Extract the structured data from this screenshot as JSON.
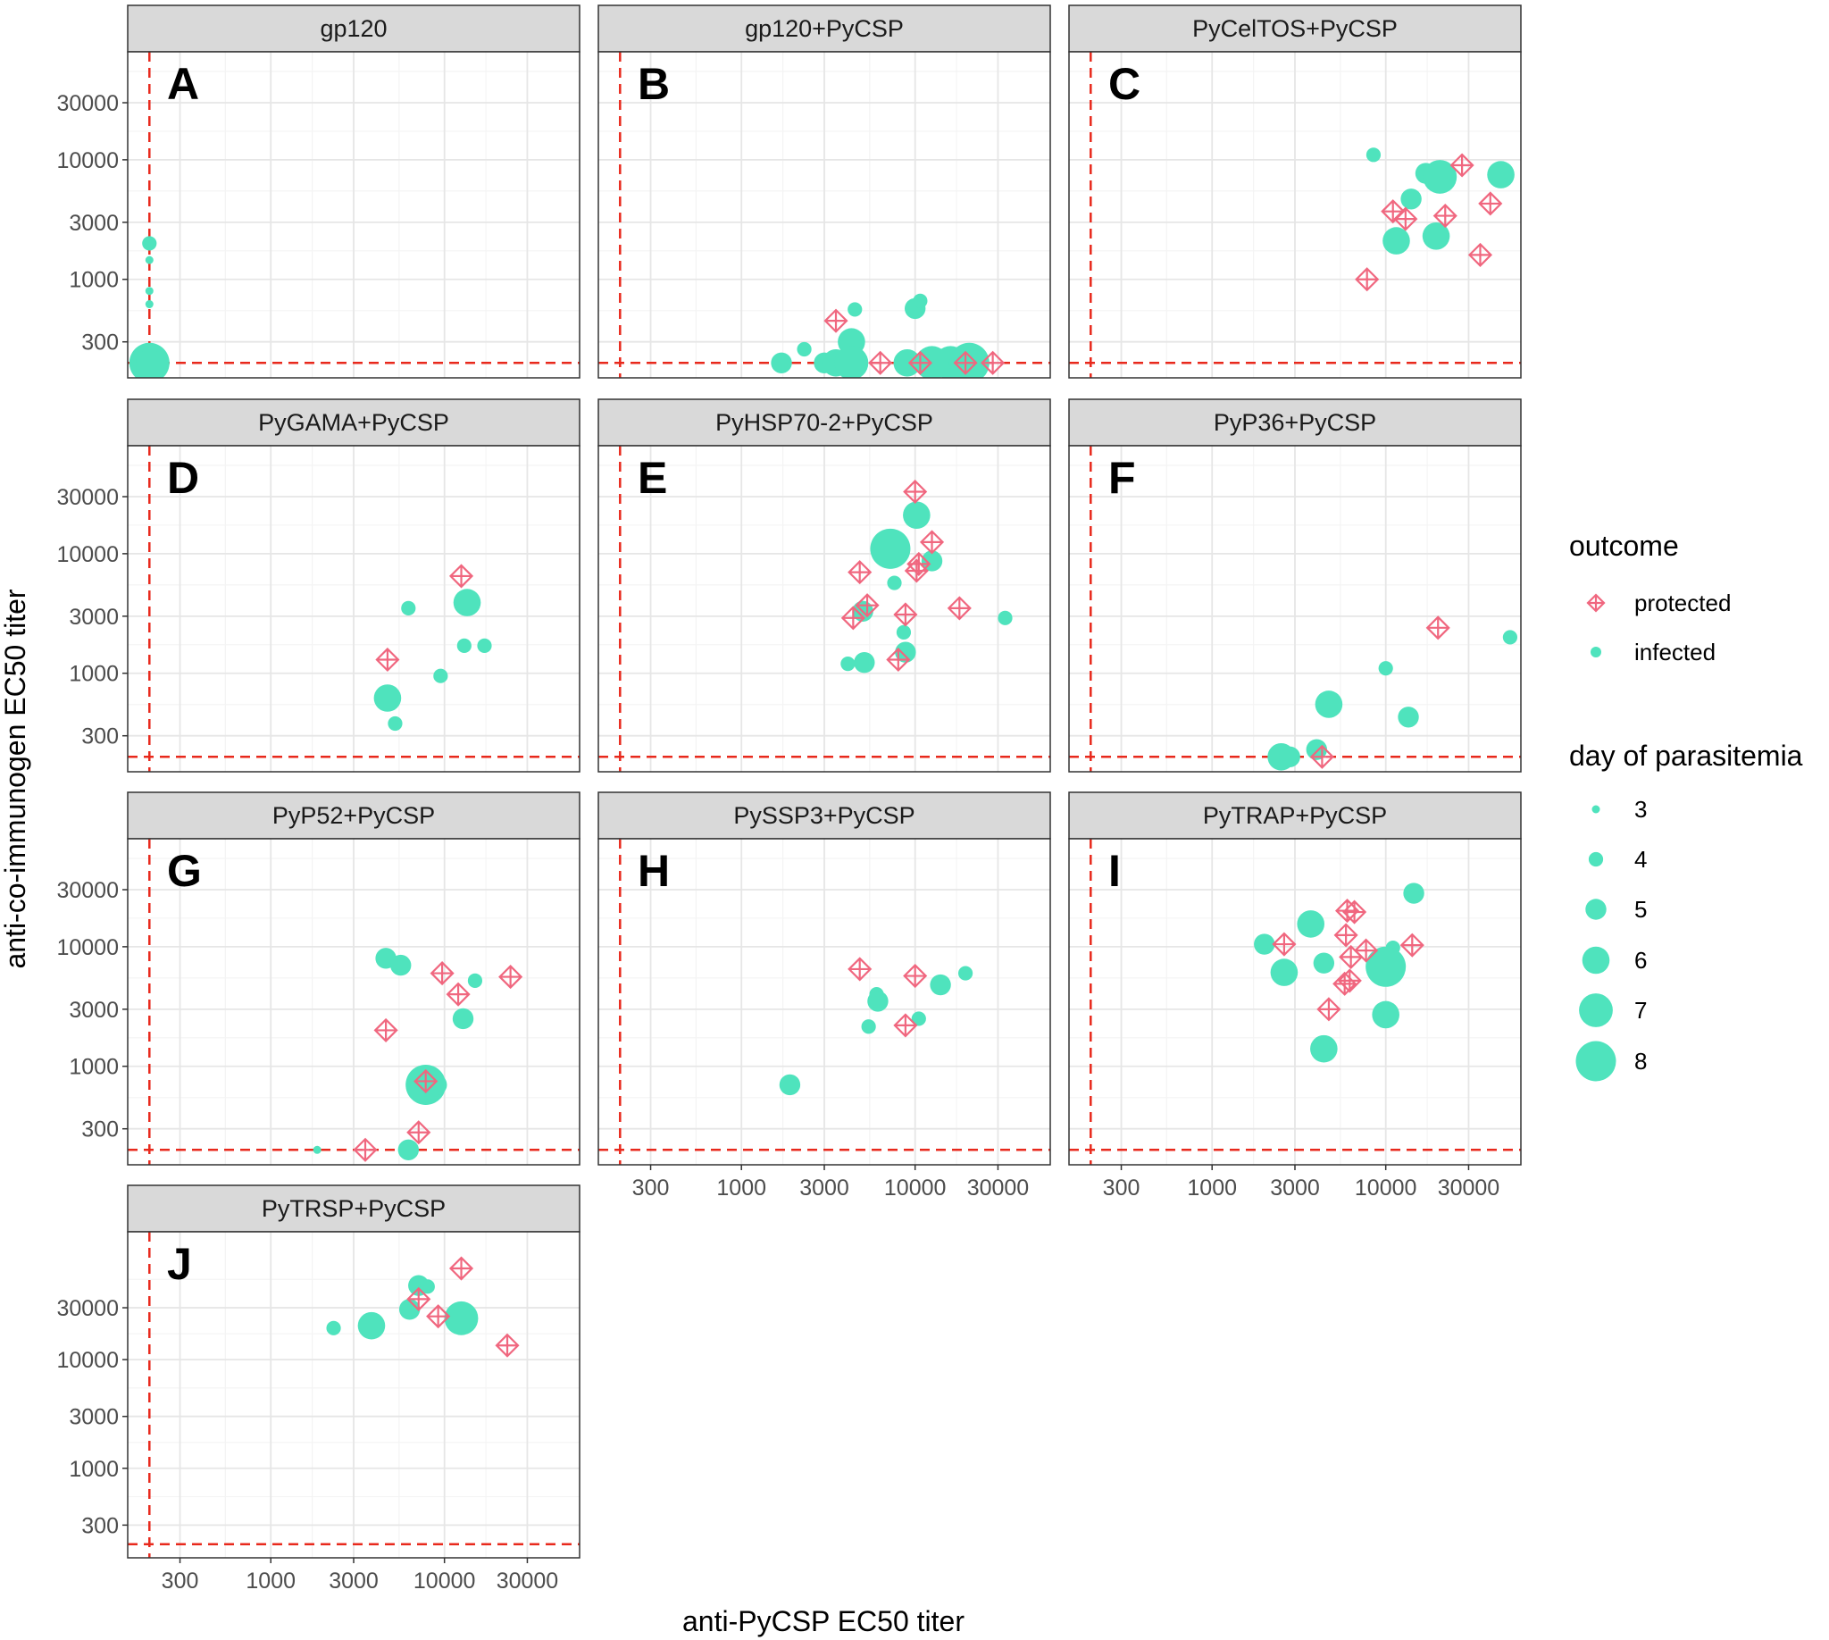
{
  "colors": {
    "protected": "#f0677f",
    "infected": "#4fe3bd",
    "threshold": "#e8291c",
    "grid_major": "#e6e6e6",
    "grid_minor": "#f4f4f4",
    "strip_fill": "#d9d9d9",
    "panel_border": "#333333"
  },
  "chart_data": {
    "type": "scatter",
    "xlabel": "anti-PyCSP EC50 titer",
    "ylabel": "anti-co-immunogen EC50 titer",
    "x_scale": "log10",
    "y_scale": "log10",
    "xlim": [
      150,
      60000
    ],
    "ylim_rows": [
      [
        150,
        80000
      ],
      [
        150,
        80000
      ],
      [
        150,
        80000
      ],
      [
        150,
        150000
      ]
    ],
    "x_ticks": [
      300,
      1000,
      3000,
      10000,
      30000
    ],
    "x_tick_labels": [
      "300",
      "1000",
      "3000",
      "10000",
      "30000"
    ],
    "y_ticks": [
      300,
      1000,
      3000,
      10000,
      30000
    ],
    "y_tick_labels": [
      "300",
      "1000",
      "3000",
      "10000",
      "30000"
    ],
    "threshold_x": 200,
    "threshold_y": 200,
    "legend": {
      "outcome_title": "outcome",
      "outcome_items": [
        {
          "key": "protected",
          "label": "protected"
        },
        {
          "key": "infected",
          "label": "infected"
        }
      ],
      "size_title": "day of parasitemia",
      "size_items": [
        3,
        4,
        5,
        6,
        7,
        8
      ],
      "size_labels": [
        "3",
        "4",
        "5",
        "6",
        "7",
        "8"
      ]
    },
    "panels": [
      {
        "title": "gp120",
        "letter": "A",
        "points": [
          {
            "x": 200,
            "y": 2000,
            "outcome": "infected",
            "day": 4
          },
          {
            "x": 200,
            "y": 1450,
            "outcome": "infected",
            "day": 3
          },
          {
            "x": 200,
            "y": 800,
            "outcome": "infected",
            "day": 3
          },
          {
            "x": 200,
            "y": 620,
            "outcome": "infected",
            "day": 3
          },
          {
            "x": 200,
            "y": 200,
            "outcome": "infected",
            "day": 8
          },
          {
            "x": 200,
            "y": 200,
            "outcome": "infected",
            "day": 6
          }
        ]
      },
      {
        "title": "gp120+PyCSP",
        "letter": "B",
        "points": [
          {
            "x": 3500,
            "y": 450,
            "outcome": "protected"
          },
          {
            "x": 4500,
            "y": 560,
            "outcome": "infected",
            "day": 4
          },
          {
            "x": 10000,
            "y": 570,
            "outcome": "infected",
            "day": 5
          },
          {
            "x": 10700,
            "y": 660,
            "outcome": "infected",
            "day": 4
          },
          {
            "x": 2300,
            "y": 260,
            "outcome": "infected",
            "day": 4
          },
          {
            "x": 4300,
            "y": 300,
            "outcome": "infected",
            "day": 6
          },
          {
            "x": 1700,
            "y": 200,
            "outcome": "infected",
            "day": 5
          },
          {
            "x": 3000,
            "y": 200,
            "outcome": "infected",
            "day": 5
          },
          {
            "x": 3500,
            "y": 200,
            "outcome": "infected",
            "day": 6
          },
          {
            "x": 4300,
            "y": 200,
            "outcome": "infected",
            "day": 7
          },
          {
            "x": 6300,
            "y": 200,
            "outcome": "protected"
          },
          {
            "x": 9000,
            "y": 200,
            "outcome": "infected",
            "day": 6
          },
          {
            "x": 10700,
            "y": 200,
            "outcome": "protected"
          },
          {
            "x": 12500,
            "y": 200,
            "outcome": "infected",
            "day": 7
          },
          {
            "x": 16000,
            "y": 200,
            "outcome": "infected",
            "day": 7
          },
          {
            "x": 19500,
            "y": 200,
            "outcome": "protected"
          },
          {
            "x": 20500,
            "y": 200,
            "outcome": "infected",
            "day": 8
          },
          {
            "x": 28000,
            "y": 200,
            "outcome": "protected"
          }
        ]
      },
      {
        "title": "PyCelTOS+PyCSP",
        "letter": "C",
        "points": [
          {
            "x": 8500,
            "y": 11000,
            "outcome": "infected",
            "day": 4
          },
          {
            "x": 27500,
            "y": 9000,
            "outcome": "protected"
          },
          {
            "x": 17000,
            "y": 7700,
            "outcome": "infected",
            "day": 5
          },
          {
            "x": 20500,
            "y": 7200,
            "outcome": "infected",
            "day": 7
          },
          {
            "x": 46000,
            "y": 7500,
            "outcome": "infected",
            "day": 6
          },
          {
            "x": 14000,
            "y": 4700,
            "outcome": "infected",
            "day": 5
          },
          {
            "x": 11000,
            "y": 3700,
            "outcome": "protected"
          },
          {
            "x": 13000,
            "y": 3200,
            "outcome": "protected"
          },
          {
            "x": 22000,
            "y": 3400,
            "outcome": "protected"
          },
          {
            "x": 40000,
            "y": 4300,
            "outcome": "protected"
          },
          {
            "x": 11500,
            "y": 2100,
            "outcome": "infected",
            "day": 6
          },
          {
            "x": 19500,
            "y": 2300,
            "outcome": "infected",
            "day": 6
          },
          {
            "x": 35000,
            "y": 1600,
            "outcome": "protected"
          },
          {
            "x": 7800,
            "y": 1000,
            "outcome": "protected"
          }
        ]
      },
      {
        "title": "PyGAMA+PyCSP",
        "letter": "D",
        "points": [
          {
            "x": 12500,
            "y": 6500,
            "outcome": "protected"
          },
          {
            "x": 6200,
            "y": 3500,
            "outcome": "infected",
            "day": 4
          },
          {
            "x": 13500,
            "y": 3900,
            "outcome": "infected",
            "day": 6
          },
          {
            "x": 13000,
            "y": 1700,
            "outcome": "infected",
            "day": 4
          },
          {
            "x": 17000,
            "y": 1700,
            "outcome": "infected",
            "day": 4
          },
          {
            "x": 4700,
            "y": 1300,
            "outcome": "protected"
          },
          {
            "x": 9500,
            "y": 950,
            "outcome": "infected",
            "day": 4
          },
          {
            "x": 4700,
            "y": 620,
            "outcome": "infected",
            "day": 6
          },
          {
            "x": 5200,
            "y": 380,
            "outcome": "infected",
            "day": 4
          }
        ]
      },
      {
        "title": "PyHSP70-2+PyCSP",
        "letter": "E",
        "points": [
          {
            "x": 10000,
            "y": 33000,
            "outcome": "protected"
          },
          {
            "x": 10200,
            "y": 21000,
            "outcome": "infected",
            "day": 6
          },
          {
            "x": 12500,
            "y": 12500,
            "outcome": "protected"
          },
          {
            "x": 7200,
            "y": 11000,
            "outcome": "infected",
            "day": 8
          },
          {
            "x": 12500,
            "y": 8700,
            "outcome": "infected",
            "day": 5
          },
          {
            "x": 10500,
            "y": 8200,
            "outcome": "protected"
          },
          {
            "x": 10200,
            "y": 7200,
            "outcome": "protected"
          },
          {
            "x": 4800,
            "y": 7000,
            "outcome": "protected"
          },
          {
            "x": 7600,
            "y": 5700,
            "outcome": "infected",
            "day": 4
          },
          {
            "x": 5300,
            "y": 3700,
            "outcome": "protected"
          },
          {
            "x": 5000,
            "y": 3300,
            "outcome": "infected",
            "day": 5
          },
          {
            "x": 4400,
            "y": 2900,
            "outcome": "protected"
          },
          {
            "x": 8800,
            "y": 3100,
            "outcome": "protected"
          },
          {
            "x": 18000,
            "y": 3500,
            "outcome": "protected"
          },
          {
            "x": 33000,
            "y": 2900,
            "outcome": "infected",
            "day": 4
          },
          {
            "x": 8600,
            "y": 2200,
            "outcome": "infected",
            "day": 4
          },
          {
            "x": 8800,
            "y": 1500,
            "outcome": "infected",
            "day": 5
          },
          {
            "x": 8000,
            "y": 1300,
            "outcome": "protected"
          },
          {
            "x": 4100,
            "y": 1200,
            "outcome": "infected",
            "day": 4
          },
          {
            "x": 5100,
            "y": 1230,
            "outcome": "infected",
            "day": 5
          }
        ]
      },
      {
        "title": "PyP36+PyCSP",
        "letter": "F",
        "points": [
          {
            "x": 20000,
            "y": 2400,
            "outcome": "protected"
          },
          {
            "x": 52000,
            "y": 2000,
            "outcome": "infected",
            "day": 4
          },
          {
            "x": 10000,
            "y": 1100,
            "outcome": "infected",
            "day": 4
          },
          {
            "x": 4700,
            "y": 550,
            "outcome": "infected",
            "day": 6
          },
          {
            "x": 13500,
            "y": 430,
            "outcome": "infected",
            "day": 5
          },
          {
            "x": 4000,
            "y": 230,
            "outcome": "infected",
            "day": 5
          },
          {
            "x": 2500,
            "y": 200,
            "outcome": "infected",
            "day": 6
          },
          {
            "x": 2800,
            "y": 200,
            "outcome": "infected",
            "day": 5
          },
          {
            "x": 4300,
            "y": 200,
            "outcome": "protected"
          }
        ]
      },
      {
        "title": "PyP52+PyCSP",
        "letter": "G",
        "points": [
          {
            "x": 4600,
            "y": 8000,
            "outcome": "infected",
            "day": 5
          },
          {
            "x": 5600,
            "y": 7000,
            "outcome": "infected",
            "day": 5
          },
          {
            "x": 9700,
            "y": 6000,
            "outcome": "protected"
          },
          {
            "x": 24000,
            "y": 5600,
            "outcome": "protected"
          },
          {
            "x": 15000,
            "y": 5200,
            "outcome": "infected",
            "day": 4
          },
          {
            "x": 12000,
            "y": 4000,
            "outcome": "protected"
          },
          {
            "x": 12800,
            "y": 2500,
            "outcome": "infected",
            "day": 5
          },
          {
            "x": 4600,
            "y": 2000,
            "outcome": "protected"
          },
          {
            "x": 7800,
            "y": 700,
            "outcome": "infected",
            "day": 8
          },
          {
            "x": 9000,
            "y": 700,
            "outcome": "infected",
            "day": 5
          },
          {
            "x": 7800,
            "y": 750,
            "outcome": "protected"
          },
          {
            "x": 7100,
            "y": 280,
            "outcome": "protected"
          },
          {
            "x": 1850,
            "y": 200,
            "outcome": "infected",
            "day": 3
          },
          {
            "x": 3500,
            "y": 200,
            "outcome": "protected"
          },
          {
            "x": 6200,
            "y": 200,
            "outcome": "infected",
            "day": 5
          }
        ]
      },
      {
        "title": "PySSP3+PyCSP",
        "letter": "H",
        "points": [
          {
            "x": 4800,
            "y": 6500,
            "outcome": "protected"
          },
          {
            "x": 10000,
            "y": 5700,
            "outcome": "protected"
          },
          {
            "x": 19500,
            "y": 6000,
            "outcome": "infected",
            "day": 4
          },
          {
            "x": 14000,
            "y": 4800,
            "outcome": "infected",
            "day": 5
          },
          {
            "x": 6000,
            "y": 4000,
            "outcome": "infected",
            "day": 4
          },
          {
            "x": 6100,
            "y": 3500,
            "outcome": "infected",
            "day": 5
          },
          {
            "x": 10500,
            "y": 2500,
            "outcome": "infected",
            "day": 4
          },
          {
            "x": 8800,
            "y": 2200,
            "outcome": "protected"
          },
          {
            "x": 5400,
            "y": 2150,
            "outcome": "infected",
            "day": 4
          },
          {
            "x": 1900,
            "y": 700,
            "outcome": "infected",
            "day": 5
          }
        ]
      },
      {
        "title": "PyTRAP+PyCSP",
        "letter": "I",
        "points": [
          {
            "x": 14500,
            "y": 28000,
            "outcome": "infected",
            "day": 5
          },
          {
            "x": 6000,
            "y": 20000,
            "outcome": "protected"
          },
          {
            "x": 6600,
            "y": 19500,
            "outcome": "protected"
          },
          {
            "x": 3700,
            "y": 15500,
            "outcome": "infected",
            "day": 6
          },
          {
            "x": 5900,
            "y": 12500,
            "outcome": "protected"
          },
          {
            "x": 2000,
            "y": 10500,
            "outcome": "infected",
            "day": 5
          },
          {
            "x": 2600,
            "y": 10500,
            "outcome": "protected"
          },
          {
            "x": 14200,
            "y": 10300,
            "outcome": "protected"
          },
          {
            "x": 11000,
            "y": 9800,
            "outcome": "infected",
            "day": 4
          },
          {
            "x": 7700,
            "y": 9300,
            "outcome": "protected"
          },
          {
            "x": 6300,
            "y": 8200,
            "outcome": "protected"
          },
          {
            "x": 4400,
            "y": 7300,
            "outcome": "infected",
            "day": 5
          },
          {
            "x": 10000,
            "y": 6800,
            "outcome": "infected",
            "day": 8
          },
          {
            "x": 2600,
            "y": 6100,
            "outcome": "infected",
            "day": 6
          },
          {
            "x": 6200,
            "y": 5200,
            "outcome": "protected"
          },
          {
            "x": 5800,
            "y": 4900,
            "outcome": "protected"
          },
          {
            "x": 4700,
            "y": 3000,
            "outcome": "protected"
          },
          {
            "x": 10000,
            "y": 2700,
            "outcome": "infected",
            "day": 6
          },
          {
            "x": 4400,
            "y": 1400,
            "outcome": "infected",
            "day": 6
          }
        ]
      },
      {
        "title": "PyTRSP+PyCSP",
        "letter": "J",
        "points": [
          {
            "x": 12500,
            "y": 69000,
            "outcome": "protected"
          },
          {
            "x": 7100,
            "y": 48000,
            "outcome": "infected",
            "day": 5
          },
          {
            "x": 8000,
            "y": 47000,
            "outcome": "infected",
            "day": 4
          },
          {
            "x": 7100,
            "y": 36000,
            "outcome": "protected"
          },
          {
            "x": 6300,
            "y": 29000,
            "outcome": "infected",
            "day": 5
          },
          {
            "x": 9200,
            "y": 25000,
            "outcome": "protected"
          },
          {
            "x": 12500,
            "y": 24000,
            "outcome": "infected",
            "day": 7
          },
          {
            "x": 3800,
            "y": 20500,
            "outcome": "infected",
            "day": 6
          },
          {
            "x": 2300,
            "y": 19500,
            "outcome": "infected",
            "day": 4
          },
          {
            "x": 23000,
            "y": 13500,
            "outcome": "protected"
          }
        ]
      }
    ]
  }
}
